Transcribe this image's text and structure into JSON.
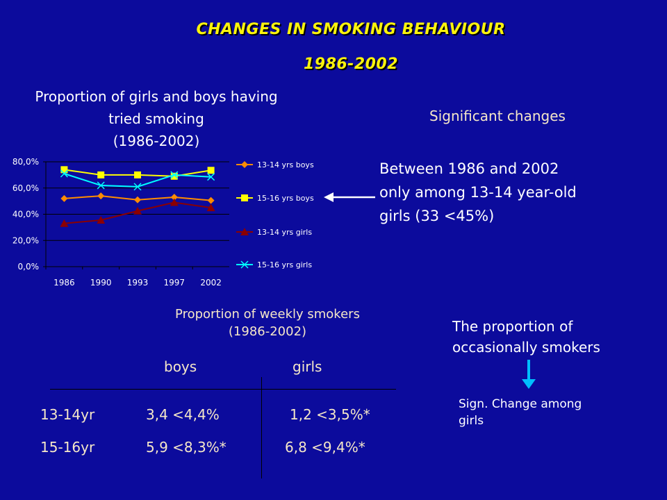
{
  "slide": {
    "title_line1": "CHANGES IN SMOKING BEHAVIOUR",
    "title_line2": "1986-2002",
    "significant_changes": "Significant changes",
    "between_lines": [
      "Between 1986 and 2002",
      "only  among 13-14 year-old",
      "girls (33 <45%)"
    ],
    "weekly_title_lines": [
      "Proportion of weekly smokers",
      "(1986-2002)"
    ],
    "col_boys": "boys",
    "col_girls": "girls",
    "rows": [
      {
        "label": "13-14yr",
        "boys": "3,4 <4,4%",
        "girls": "1,2 <3,5%*"
      },
      {
        "label": "15-16yr",
        "boys": "5,9 <8,3%*",
        "girls": "6,8 <9,4%*"
      }
    ],
    "proportion_lines": [
      "The proportion of",
      "occasionally smokers"
    ],
    "sign_lines": [
      "Sign. Change among",
      "girls"
    ],
    "colors": {
      "background": "#0c0b9c",
      "title": "#fbf30c",
      "grid": "#000000",
      "arrow_blue": "#00bfff"
    }
  },
  "chart_data": {
    "type": "line",
    "title_lines": [
      "Proportion of girls and boys having",
      "tried smoking",
      "(1986-2002)"
    ],
    "categories": [
      "1986",
      "1990",
      "1993",
      "1997",
      "2002"
    ],
    "y_ticks": [
      "0,0%",
      "20,0%",
      "40,0%",
      "60,0%",
      "80,0%"
    ],
    "ylim": [
      0,
      80
    ],
    "grid": true,
    "legend_position": "right",
    "series": [
      {
        "name": "13-14 yrs boys",
        "values": [
          52,
          54,
          51,
          53,
          50.5
        ],
        "color": "#ff8c00",
        "marker": "diamond"
      },
      {
        "name": "15-16 yrs boys",
        "values": [
          74,
          70,
          70,
          69,
          73.5
        ],
        "color": "#ffff00",
        "marker": "square"
      },
      {
        "name": "13-14 yrs girls",
        "values": [
          33,
          35.5,
          42.5,
          49,
          45
        ],
        "color": "#8b0000",
        "marker": "triangle"
      },
      {
        "name": "15-16 yrs girls",
        "values": [
          71,
          62,
          61,
          70,
          68.5
        ],
        "color": "#00ffff",
        "marker": "x"
      }
    ]
  }
}
